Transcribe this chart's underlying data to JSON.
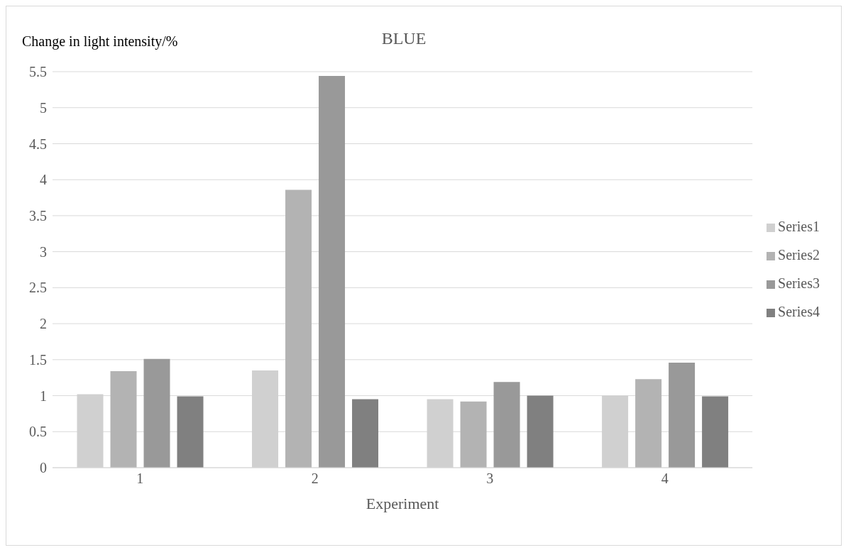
{
  "chart_data": {
    "type": "bar",
    "title": "BLUE",
    "ylabel": "Change in light intensity/%",
    "xlabel": "Experiment",
    "categories": [
      "1",
      "2",
      "3",
      "4"
    ],
    "series": [
      {
        "name": "Series1",
        "color": "#d0d0d0",
        "values": [
          1.02,
          1.35,
          0.95,
          1.0
        ]
      },
      {
        "name": "Series2",
        "color": "#b3b3b3",
        "values": [
          1.34,
          3.86,
          0.92,
          1.23
        ]
      },
      {
        "name": "Series3",
        "color": "#999999",
        "values": [
          1.51,
          5.44,
          1.19,
          1.46
        ]
      },
      {
        "name": "Series4",
        "color": "#808080",
        "values": [
          0.99,
          0.95,
          1.0,
          0.99
        ]
      }
    ],
    "ylim": [
      0,
      5.5
    ],
    "yticks": [
      0,
      0.5,
      1,
      1.5,
      2,
      2.5,
      3,
      3.5,
      4,
      4.5,
      5,
      5.5
    ],
    "grid": "y",
    "legend": "right"
  }
}
